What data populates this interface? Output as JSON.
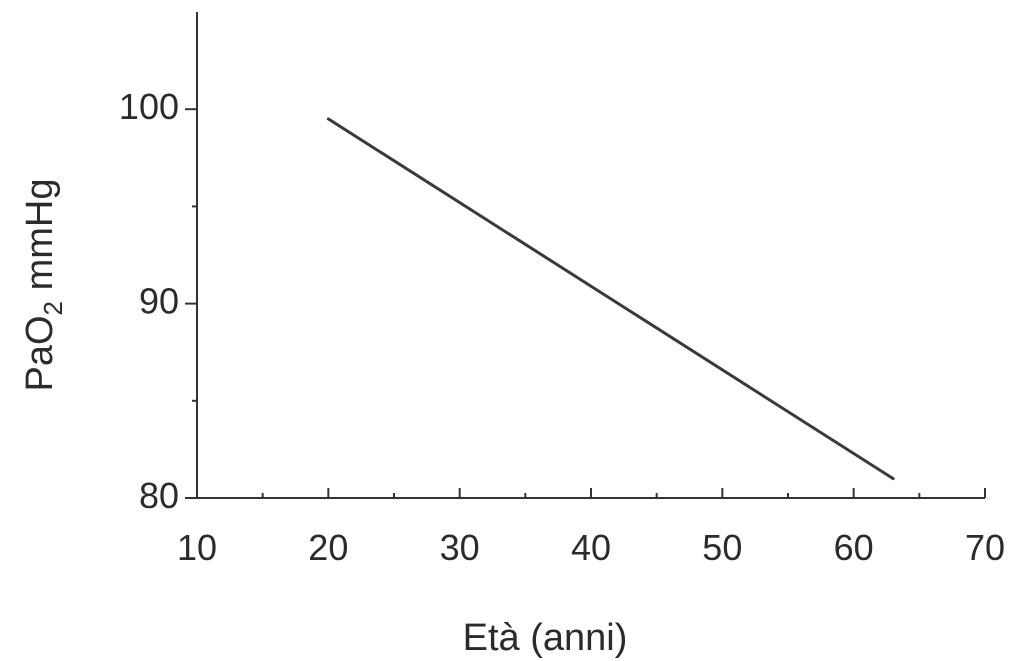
{
  "chart_data": {
    "type": "line",
    "title": "",
    "xlabel": "Età (anni)",
    "ylabel_main": "PaO",
    "ylabel_sub": "2",
    "ylabel_unit": " mmHg",
    "xlim": [
      10,
      70
    ],
    "ylim": [
      80,
      105
    ],
    "x_ticks": [
      10,
      20,
      30,
      40,
      50,
      60,
      70
    ],
    "y_ticks": [
      80,
      90,
      100
    ],
    "grid": false,
    "series": [
      {
        "x": [
          20,
          63
        ],
        "y": [
          99.5,
          81
        ]
      }
    ],
    "colors": {
      "line": "#3a3a3a",
      "axis": "#333333",
      "text": "#2b2b2b"
    }
  }
}
